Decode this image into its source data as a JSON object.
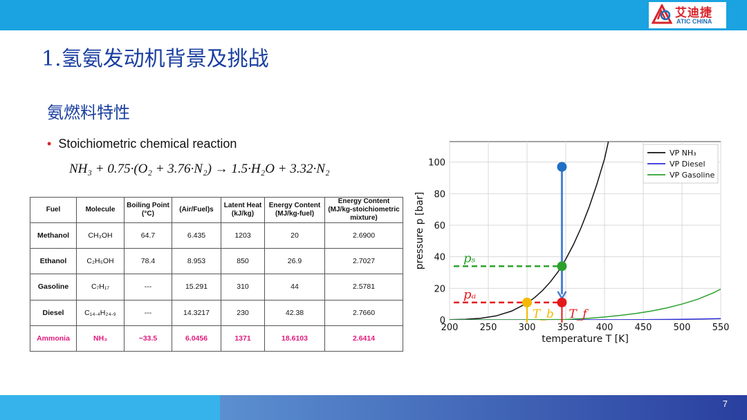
{
  "logo": {
    "text_cn": "艾迪捷",
    "text_en": "ATIC CHINA"
  },
  "title": "1.氢氨发动机背景及挑战",
  "subtitle": "氨燃料特性",
  "bullet": "Stoichiometric chemical reaction",
  "equation": "NH₃ + 0.75·(O₂ + 3.76·N₂) → 1.5·H₂O + 3.32·N₂",
  "table": {
    "headers": [
      "Fuel",
      "Molecule",
      "Boiling Point (°C)",
      "(Air/Fuel)s",
      "Latent Heat (kJ/kg)",
      "Energy Content (MJ/kg-fuel)",
      "Energy Content (MJ/kg-stoichiometric mixture)"
    ],
    "rows": [
      [
        "Methanol",
        "CH₃OH",
        "64.7",
        "6.435",
        "1203",
        "20",
        "2.6900"
      ],
      [
        "Ethanol",
        "C₂H₅OH",
        "78.4",
        "8.953",
        "850",
        "26.9",
        "2.7027"
      ],
      [
        "Gasoline",
        "C₇H₁₇",
        "---",
        "15.291",
        "310",
        "44",
        "2.5781"
      ],
      [
        "Diesel",
        "C₁₄.₄H₂₄.₉",
        "---",
        "14.3217",
        "230",
        "42.38",
        "2.7660"
      ],
      [
        "Ammonia",
        "NH₃",
        "−33.5",
        "6.0456",
        "1371",
        "18.6103",
        "2.6414"
      ]
    ],
    "highlight_color": "#e0197d"
  },
  "chart_data": {
    "type": "line",
    "xlabel": "temperature T [K]",
    "ylabel": "pressure p [bar]",
    "xlim": [
      200,
      550
    ],
    "ylim": [
      0,
      113
    ],
    "xticks": [
      "200",
      "250",
      "300",
      "350",
      "400",
      "450",
      "500",
      "550"
    ],
    "yticks": [
      "0",
      "20",
      "40",
      "60",
      "80",
      "100"
    ],
    "grid": true,
    "legend_position": "top-right",
    "series": [
      {
        "name": "VP NH₃",
        "color": "#111111",
        "x": [
          200,
          220,
          240,
          260,
          280,
          300,
          310,
          320,
          330,
          340,
          350,
          360,
          370,
          380,
          390,
          400,
          405
        ],
        "y": [
          0.09,
          0.34,
          1.0,
          2.5,
          5.5,
          10.6,
          14.2,
          18.6,
          24.0,
          30.5,
          38.5,
          47.8,
          58.7,
          71.3,
          85.8,
          102.0,
          113.0
        ]
      },
      {
        "name": "VP Diesel",
        "color": "#2b2bd6",
        "x": [
          200,
          300,
          350,
          400,
          450,
          500,
          550
        ],
        "y": [
          0,
          0,
          0,
          0.05,
          0.1,
          0.3,
          0.8
        ]
      },
      {
        "name": "VP Gasoline",
        "color": "#2ca02c",
        "x": [
          200,
          300,
          350,
          380,
          400,
          420,
          440,
          460,
          480,
          500,
          520,
          540,
          550
        ],
        "y": [
          0,
          0,
          0.2,
          1.0,
          1.8,
          2.8,
          4.0,
          5.5,
          7.5,
          10.0,
          13.0,
          17.0,
          19.5
        ]
      }
    ],
    "annotations": {
      "ps": {
        "label": "pₛ",
        "y": 34,
        "color": "#2ca02c"
      },
      "pa": {
        "label": "pₐ",
        "y": 11,
        "color": "#e31a1c"
      },
      "Tb": {
        "label": "T_b",
        "x": 300,
        "color": "#f5b800"
      },
      "Tf": {
        "label": "T_f",
        "x": 345,
        "color": "#e31a1c"
      },
      "arrow_start": {
        "x": 345,
        "y": 97
      },
      "points": [
        {
          "name": "start-point",
          "x": 345,
          "y": 97,
          "color": "#1f6fc5"
        },
        {
          "name": "saturation-point",
          "x": 345,
          "y": 34,
          "color": "#2ca02c"
        },
        {
          "name": "ambient-point",
          "x": 345,
          "y": 11,
          "color": "#e31a1c"
        },
        {
          "name": "boiling-point",
          "x": 300,
          "y": 11,
          "color": "#f5b800"
        }
      ]
    }
  },
  "page_number": "7"
}
